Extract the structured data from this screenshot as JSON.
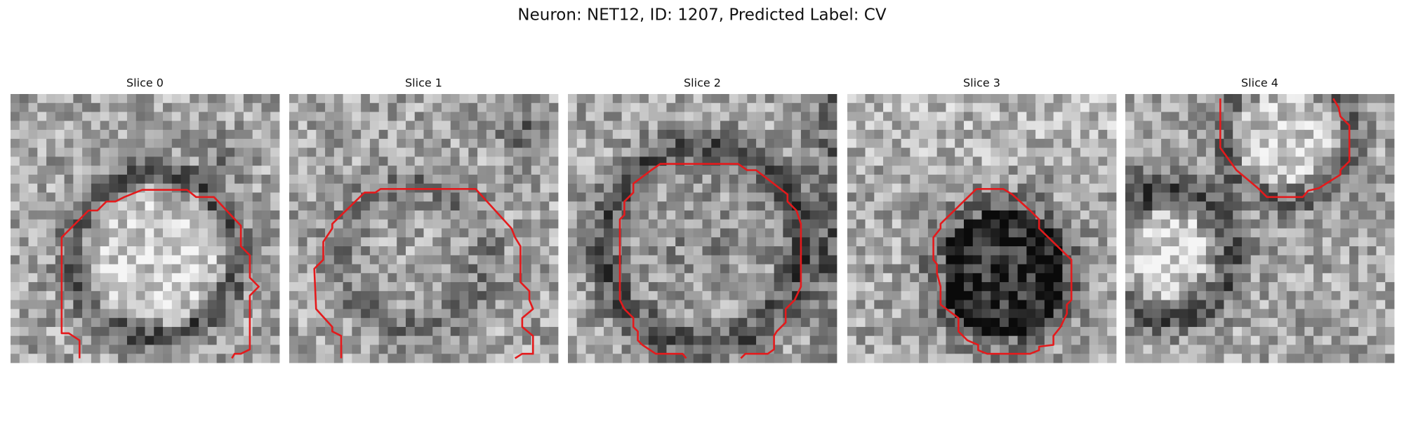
{
  "title": "Neuron: NET12, ID: 1207, Predicted Label: CV",
  "panels": [
    {
      "title": "Slice 0"
    },
    {
      "title": "Slice 1"
    },
    {
      "title": "Slice 2"
    },
    {
      "title": "Slice 3"
    },
    {
      "title": "Slice 4"
    }
  ]
}
